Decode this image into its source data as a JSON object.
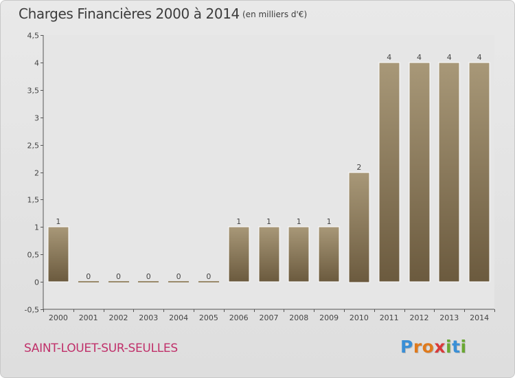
{
  "header": {
    "title": "Charges Financières 2000 à 2014",
    "subtitle": "(en milliers d'€)"
  },
  "footer": {
    "commune": "SAINT-LOUET-SUR-SEULLES",
    "logo_text": "Proxiti",
    "logo_letters": [
      {
        "char": "P",
        "color": "#3a8fd6"
      },
      {
        "char": "r",
        "color": "#e07a1c"
      },
      {
        "char": "o",
        "color": "#e07a1c"
      },
      {
        "char": "x",
        "color": "#d93a3a"
      },
      {
        "char": "i",
        "color": "#6aa832"
      },
      {
        "char": "t",
        "color": "#3a8fd6"
      },
      {
        "char": "i",
        "color": "#6aa832"
      }
    ]
  },
  "chart_data": {
    "type": "bar",
    "title": "Charges Financières 2000 à 2014",
    "subtitle": "(en milliers d'€)",
    "categories": [
      "2000",
      "2001",
      "2002",
      "2003",
      "2004",
      "2005",
      "2006",
      "2007",
      "2008",
      "2009",
      "2010",
      "2011",
      "2012",
      "2013",
      "2014"
    ],
    "values": [
      1,
      0,
      0,
      0,
      0,
      0,
      1,
      1,
      1,
      1,
      2,
      4,
      4,
      4,
      4
    ],
    "value_labels": [
      "1",
      "0",
      "0",
      "0",
      "0",
      "0",
      "1",
      "1",
      "1",
      "1",
      "2",
      "4",
      "4",
      "4",
      "4"
    ],
    "ylim": [
      -0.5,
      4.5
    ],
    "yticks": [
      -0.5,
      0,
      0.5,
      1,
      1.5,
      2,
      2.5,
      3,
      3.5,
      4,
      4.5
    ],
    "ytick_labels": [
      "-0,5",
      "0",
      "0,5",
      "1",
      "1,5",
      "2",
      "2,5",
      "3",
      "3,5",
      "4",
      "4,5"
    ],
    "xlabel": "",
    "ylabel": "",
    "grid": false,
    "legend": "none",
    "colors": {
      "bar_top": "#a89878",
      "bar_bottom": "#6b5a3e",
      "zero_bar": "#9a8a6a",
      "axis": "#555555",
      "plot_bg": "#e6e6e6"
    }
  }
}
